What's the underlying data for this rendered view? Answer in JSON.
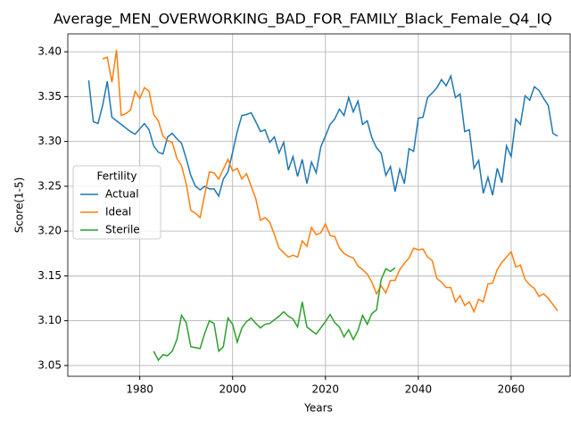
{
  "chart_data": {
    "type": "line",
    "title": "Average_MEN_OVERWORKING_BAD_FOR_FAMILY_Black_Female_Q4_IQ",
    "xlabel": "Years",
    "ylabel": "Score(1-5)",
    "x": [
      1969,
      1970,
      1971,
      1972,
      1973,
      1974,
      1975,
      1976,
      1977,
      1978,
      1979,
      1980,
      1981,
      1982,
      1983,
      1984,
      1985,
      1986,
      1987,
      1988,
      1989,
      1990,
      1991,
      1992,
      1993,
      1994,
      1995,
      1996,
      1997,
      1998,
      1999,
      2000,
      2001,
      2002,
      2003,
      2004,
      2005,
      2006,
      2007,
      2008,
      2009,
      2010,
      2011,
      2012,
      2013,
      2014,
      2015,
      2016,
      2017,
      2018,
      2019,
      2020,
      2021,
      2022,
      2023,
      2024,
      2025,
      2026,
      2027,
      2028,
      2029,
      2030,
      2031,
      2032,
      2033,
      2034,
      2035,
      2036,
      2037,
      2038,
      2039,
      2040,
      2041,
      2042,
      2043,
      2044,
      2045,
      2046,
      2047,
      2048,
      2049,
      2050,
      2051,
      2052,
      2053,
      2054,
      2055,
      2056,
      2057,
      2058,
      2059,
      2060,
      2061,
      2062,
      2063,
      2064,
      2065,
      2066,
      2067,
      2068,
      2069,
      2070
    ],
    "series": [
      {
        "name": "Actual",
        "color": "#1f77b4",
        "values": [
          3.368,
          3.322,
          3.32,
          3.34,
          3.367,
          3.327,
          3.323,
          3.319,
          3.315,
          3.311,
          3.308,
          3.314,
          3.32,
          3.313,
          3.295,
          3.288,
          3.286,
          3.305,
          3.309,
          3.303,
          3.298,
          3.281,
          3.262,
          3.25,
          3.246,
          3.25,
          3.247,
          3.247,
          3.239,
          3.258,
          3.266,
          3.288,
          3.311,
          3.329,
          3.33,
          3.332,
          3.322,
          3.311,
          3.313,
          3.299,
          3.305,
          3.287,
          3.299,
          3.268,
          3.283,
          3.261,
          3.28,
          3.253,
          3.277,
          3.265,
          3.294,
          3.306,
          3.319,
          3.325,
          3.336,
          3.329,
          3.349,
          3.333,
          3.345,
          3.319,
          3.323,
          3.304,
          3.293,
          3.287,
          3.262,
          3.272,
          3.244,
          3.269,
          3.253,
          3.292,
          3.289,
          3.326,
          3.327,
          3.349,
          3.354,
          3.36,
          3.369,
          3.362,
          3.373,
          3.349,
          3.353,
          3.311,
          3.313,
          3.27,
          3.279,
          3.242,
          3.26,
          3.24,
          3.27,
          3.254,
          3.295,
          3.283,
          3.325,
          3.319,
          3.351,
          3.346,
          3.361,
          3.357,
          3.348,
          3.34,
          3.309,
          3.306
        ]
      },
      {
        "name": "Ideal",
        "color": "#ff7f0e",
        "values": [
          null,
          null,
          null,
          3.392,
          3.394,
          3.366,
          3.402,
          3.329,
          3.331,
          3.335,
          3.356,
          3.348,
          3.36,
          3.356,
          3.33,
          3.323,
          3.306,
          3.301,
          3.299,
          3.281,
          3.273,
          3.253,
          3.223,
          3.22,
          3.215,
          3.241,
          3.266,
          3.265,
          3.258,
          3.269,
          3.28,
          3.267,
          3.27,
          3.258,
          3.264,
          3.25,
          3.236,
          3.212,
          3.215,
          3.21,
          3.196,
          3.181,
          3.176,
          3.171,
          3.173,
          3.171,
          3.189,
          3.183,
          3.204,
          3.196,
          3.198,
          3.208,
          3.195,
          3.194,
          3.181,
          3.175,
          3.172,
          3.17,
          3.161,
          3.157,
          3.152,
          3.143,
          3.13,
          3.139,
          3.131,
          3.145,
          3.145,
          3.157,
          3.164,
          3.17,
          3.181,
          3.179,
          3.18,
          3.171,
          3.167,
          3.147,
          3.143,
          3.137,
          3.137,
          3.121,
          3.128,
          3.117,
          3.121,
          3.11,
          3.124,
          3.121,
          3.141,
          3.142,
          3.157,
          3.165,
          3.171,
          3.177,
          3.16,
          3.162,
          3.146,
          3.14,
          3.136,
          3.127,
          3.13,
          3.125,
          3.118,
          3.111
        ]
      },
      {
        "name": "Sterile",
        "color": "#2ca02c",
        "values": [
          null,
          null,
          null,
          null,
          null,
          null,
          null,
          null,
          null,
          null,
          null,
          null,
          null,
          null,
          3.066,
          3.056,
          3.062,
          3.061,
          3.066,
          3.079,
          3.106,
          3.098,
          3.071,
          3.07,
          3.069,
          3.086,
          3.1,
          3.097,
          3.066,
          3.071,
          3.103,
          3.096,
          3.076,
          3.092,
          3.099,
          3.103,
          3.097,
          3.092,
          3.096,
          3.097,
          3.101,
          3.105,
          3.11,
          3.105,
          3.102,
          3.093,
          3.121,
          3.093,
          3.089,
          3.085,
          3.092,
          3.099,
          3.107,
          3.098,
          3.093,
          3.082,
          3.09,
          3.079,
          3.089,
          3.106,
          3.096,
          3.108,
          3.112,
          3.146,
          3.158,
          3.155,
          3.159,
          null,
          null,
          null,
          null,
          null,
          null,
          null,
          null,
          null,
          null,
          null,
          null,
          null,
          null,
          null,
          null,
          null,
          null,
          null,
          null,
          null,
          null,
          null,
          null,
          null,
          null,
          null,
          null,
          null,
          null,
          null,
          null,
          null,
          null,
          null
        ]
      }
    ],
    "xlim": [
      1964.5,
      2072.7
    ],
    "ylim": [
      3.038,
      3.42
    ],
    "xticks": [
      1980,
      2000,
      2020,
      2040,
      2060
    ],
    "yticks": [
      3.05,
      {
        "value": 3.1,
        "label": "3.10"
      },
      3.15,
      {
        "value": 3.2,
        "label": "3.20"
      },
      3.25,
      {
        "value": 3.3,
        "label": "3.30"
      },
      3.35,
      {
        "value": 3.4,
        "label": "3.40"
      }
    ],
    "grid": true,
    "legend_title": "Fertility",
    "legend_position": "center left"
  }
}
